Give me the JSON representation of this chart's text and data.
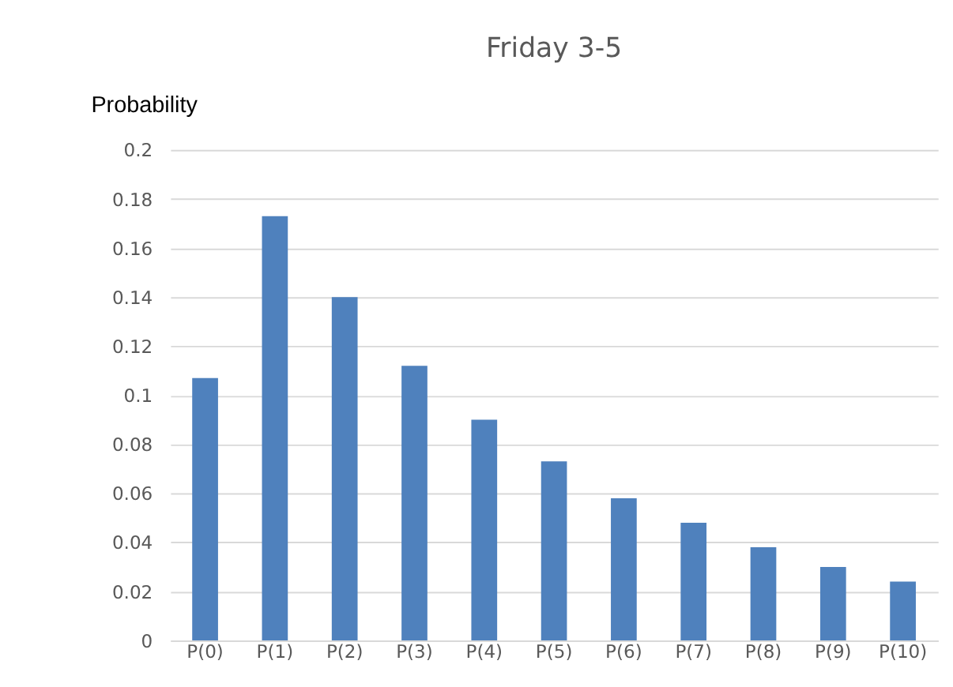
{
  "chart_data": {
    "type": "bar",
    "title": "Friday 3-5",
    "ylabel": "Probability",
    "categories": [
      "P(0)",
      "P(1)",
      "P(2)",
      "P(3)",
      "P(4)",
      "P(5)",
      "P(6)",
      "P(7)",
      "P(8)",
      "P(9)",
      "P(10)"
    ],
    "values": [
      0.107,
      0.173,
      0.14,
      0.112,
      0.09,
      0.073,
      0.058,
      0.048,
      0.038,
      0.03,
      0.024
    ],
    "color": "#4f81bd",
    "ylim": [
      0,
      0.2
    ],
    "yticks": [
      0,
      0.02,
      0.04,
      0.06,
      0.08,
      0.1,
      0.12,
      0.14,
      0.16,
      0.18,
      0.2
    ],
    "grid": "y"
  }
}
